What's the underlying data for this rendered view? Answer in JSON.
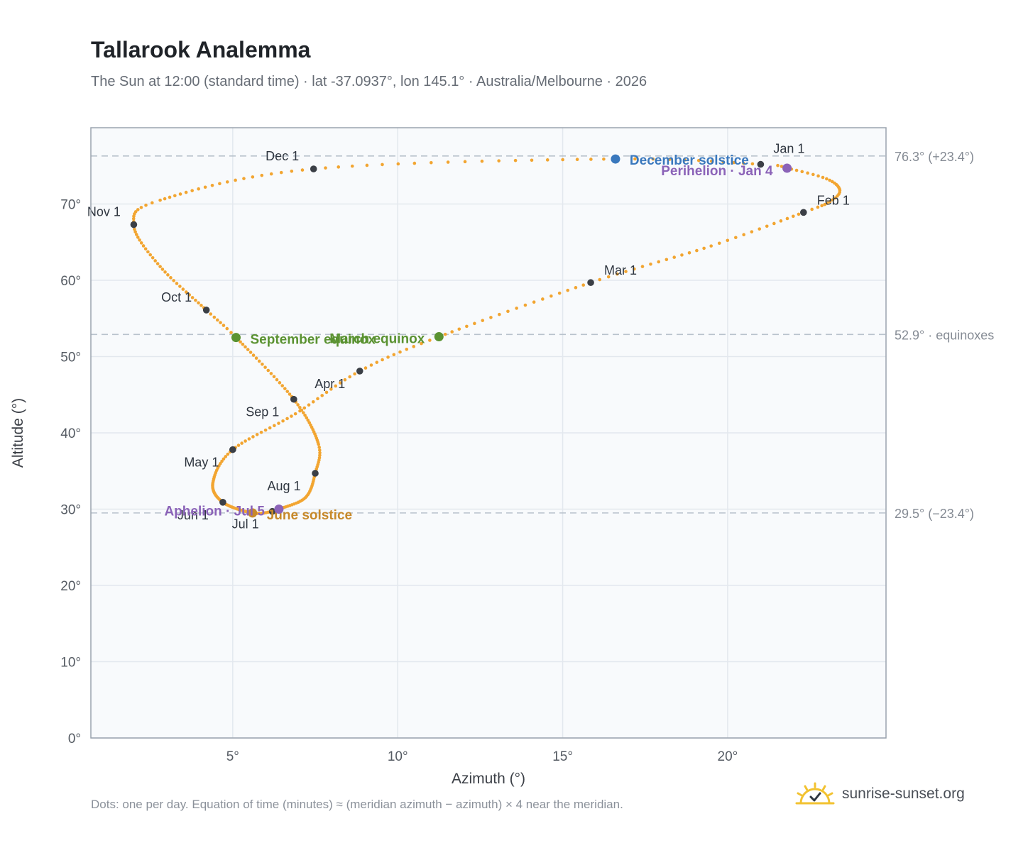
{
  "title": "Tallarook Analemma",
  "subtitle": "The Sun at 12:00 (standard time) · lat -37.0937°, lon 145.1° · Australia/Melbourne · 2026",
  "footnote": "Dots: one per day. Equation of time (minutes) ≈ (meridian azimuth − azimuth) × 4 near the meridian.",
  "brand": "sunrise-sunset.org",
  "colors": {
    "curve": "#f2a531",
    "month_marker": "#3b3f46",
    "solstice_dec": "#3a78bd",
    "solstice_jun": "#c7892a",
    "equinox": "#5a9231",
    "apsis": "#8b63b8",
    "reference_line": "#b8c2cc",
    "plot_bg": "#f8fafc",
    "frame": "#9aa3ae"
  },
  "chart_data": {
    "type": "scatter",
    "xlabel": "Azimuth (°)",
    "ylabel": "Altitude (°)",
    "xlim": [
      0.7,
      24.8
    ],
    "ylim": [
      0,
      80
    ],
    "x_ticks": [
      {
        "value": 5,
        "label": "5°"
      },
      {
        "value": 10,
        "label": "10°"
      },
      {
        "value": 15,
        "label": "15°"
      },
      {
        "value": 20,
        "label": "20°"
      }
    ],
    "y_ticks": [
      {
        "value": 0,
        "label": "0°"
      },
      {
        "value": 10,
        "label": "10°"
      },
      {
        "value": 20,
        "label": "20°"
      },
      {
        "value": 30,
        "label": "30°"
      },
      {
        "value": 40,
        "label": "40°"
      },
      {
        "value": 50,
        "label": "50°"
      },
      {
        "value": 60,
        "label": "60°"
      },
      {
        "value": 70,
        "label": "70°"
      }
    ],
    "grid": true,
    "reference_lines": [
      {
        "y": 76.3,
        "label": "76.3° (+23.4°)"
      },
      {
        "y": 52.9,
        "label": "52.9° · equinoxes"
      },
      {
        "y": 29.5,
        "label": "29.5° (−23.4°)"
      }
    ],
    "month_markers": [
      {
        "label": "Jan 1",
        "x": 21.0,
        "y": 75.2
      },
      {
        "label": "Feb 1",
        "x": 22.3,
        "y": 68.9
      },
      {
        "label": "Mar 1",
        "x": 15.85,
        "y": 59.7
      },
      {
        "label": "Apr 1",
        "x": 8.85,
        "y": 48.1
      },
      {
        "label": "May 1",
        "x": 5.0,
        "y": 37.8
      },
      {
        "label": "Jun 1",
        "x": 4.7,
        "y": 30.9
      },
      {
        "label": "Jul 1",
        "x": 6.2,
        "y": 29.7
      },
      {
        "label": "Aug 1",
        "x": 7.5,
        "y": 34.7
      },
      {
        "label": "Sep 1",
        "x": 6.85,
        "y": 44.4
      },
      {
        "label": "Oct 1",
        "x": 4.2,
        "y": 56.1
      },
      {
        "label": "Nov 1",
        "x": 2.0,
        "y": 67.3
      },
      {
        "label": "Dec 1",
        "x": 7.45,
        "y": 74.6
      }
    ],
    "events": [
      {
        "label": "December solstice",
        "x": 16.6,
        "y": 75.9,
        "color": "#3a78bd"
      },
      {
        "label": "Perihelion · Jan 4",
        "x": 21.8,
        "y": 74.7,
        "color": "#8b63b8"
      },
      {
        "label": "March equinox",
        "x": 11.25,
        "y": 52.6,
        "color": "#5a9231"
      },
      {
        "label": "September equinox",
        "x": 5.1,
        "y": 52.5,
        "color": "#5a9231"
      },
      {
        "label": "June solstice",
        "x": 5.6,
        "y": 29.5,
        "color": "#c7892a"
      },
      {
        "label": "Aphelion · Jul 5",
        "x": 6.4,
        "y": 30.0,
        "color": "#8b63b8"
      }
    ],
    "path_keypoints": [
      {
        "doy": 1,
        "x": 21.0,
        "y": 75.2
      },
      {
        "doy": 4,
        "x": 21.8,
        "y": 74.7
      },
      {
        "doy": 12,
        "x": 23.0,
        "y": 73.3
      },
      {
        "doy": 20,
        "x": 23.4,
        "y": 71.8
      },
      {
        "doy": 26,
        "x": 23.1,
        "y": 70.3
      },
      {
        "doy": 32,
        "x": 22.3,
        "y": 68.9
      },
      {
        "doy": 45,
        "x": 19.5,
        "y": 64.5
      },
      {
        "doy": 60,
        "x": 15.85,
        "y": 59.7
      },
      {
        "doy": 79,
        "x": 11.25,
        "y": 52.6
      },
      {
        "doy": 91,
        "x": 8.85,
        "y": 48.1
      },
      {
        "doy": 105,
        "x": 6.9,
        "y": 42.5
      },
      {
        "doy": 121,
        "x": 5.0,
        "y": 37.8
      },
      {
        "doy": 136,
        "x": 4.4,
        "y": 33.5
      },
      {
        "doy": 152,
        "x": 4.7,
        "y": 30.9
      },
      {
        "doy": 172,
        "x": 5.6,
        "y": 29.5
      },
      {
        "doy": 182,
        "x": 6.2,
        "y": 29.7
      },
      {
        "doy": 186,
        "x": 6.4,
        "y": 30.0
      },
      {
        "doy": 200,
        "x": 7.2,
        "y": 31.5
      },
      {
        "doy": 213,
        "x": 7.5,
        "y": 34.7
      },
      {
        "doy": 225,
        "x": 7.6,
        "y": 38.5
      },
      {
        "doy": 244,
        "x": 6.85,
        "y": 44.4
      },
      {
        "doy": 266,
        "x": 5.1,
        "y": 52.5
      },
      {
        "doy": 274,
        "x": 4.2,
        "y": 56.1
      },
      {
        "doy": 290,
        "x": 2.8,
        "y": 61.8
      },
      {
        "doy": 305,
        "x": 2.0,
        "y": 67.3
      },
      {
        "doy": 315,
        "x": 2.8,
        "y": 70.5
      },
      {
        "doy": 335,
        "x": 7.45,
        "y": 74.6
      },
      {
        "doy": 355,
        "x": 16.6,
        "y": 75.9
      },
      {
        "doy": 366,
        "x": 21.0,
        "y": 75.2
      }
    ]
  }
}
